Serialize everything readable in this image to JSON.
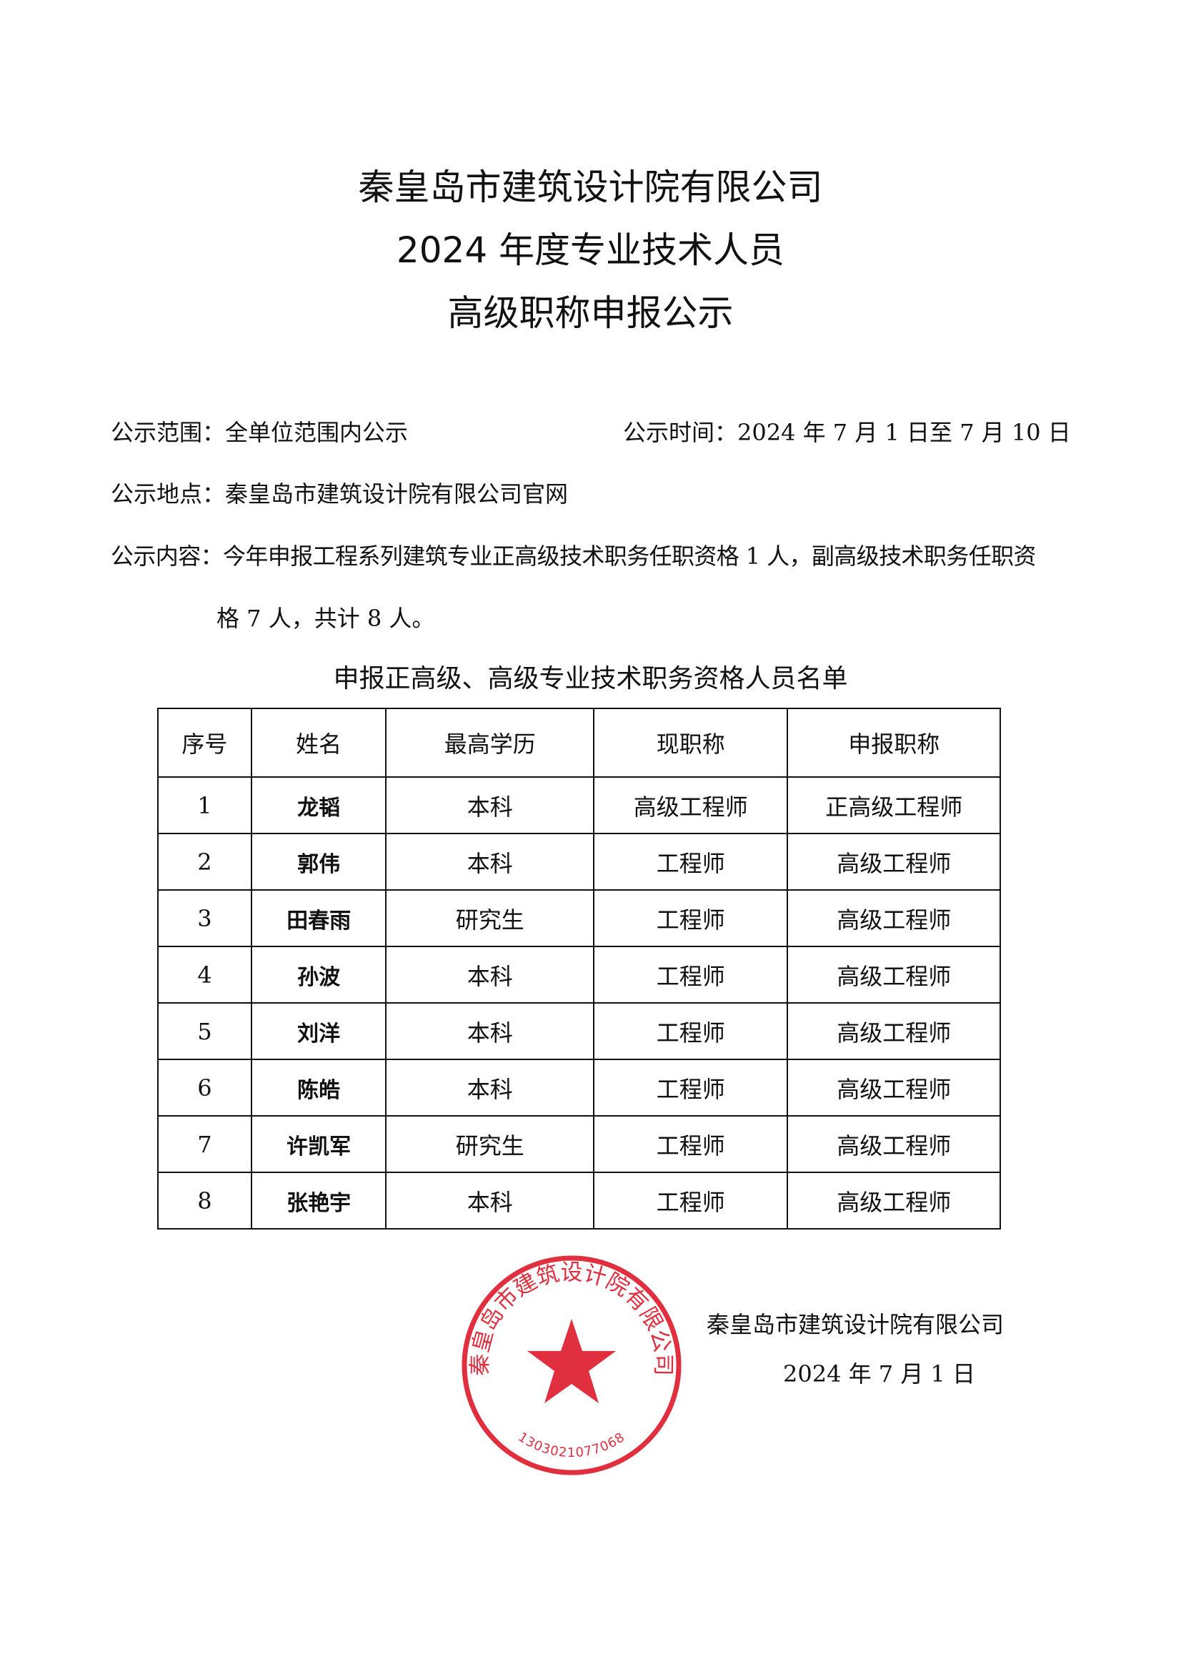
{
  "header": {
    "title_line1": "秦皇岛市建筑设计院有限公司",
    "title_line2": "2024 年度专业技术人员",
    "title_line3": "高级职称申报公示"
  },
  "info": {
    "scope": "公示范围：全单位范围内公示",
    "time": "公示时间：2024 年 7 月 1 日至 7 月 10 日",
    "place": "公示地点：秦皇岛市建筑设计院有限公司官网",
    "content_line1": "公示内容：今年申报工程系列建筑专业正高级技术职务任职资格 1 人，副高级技术职务任职资",
    "content_line2": "格 7 人，共计 8 人。"
  },
  "table": {
    "caption": "申报正高级、高级专业技术职务资格人员名单",
    "headers": [
      "序号",
      "姓名",
      "最高学历",
      "现职称",
      "申报职称"
    ],
    "rows": [
      [
        "1",
        "龙韬",
        "本科",
        "高级工程师",
        "正高级工程师"
      ],
      [
        "2",
        "郭伟",
        "本科",
        "工程师",
        "高级工程师"
      ],
      [
        "3",
        "田春雨",
        "研究生",
        "工程师",
        "高级工程师"
      ],
      [
        "4",
        "孙波",
        "本科",
        "工程师",
        "高级工程师"
      ],
      [
        "5",
        "刘洋",
        "本科",
        "工程师",
        "高级工程师"
      ],
      [
        "6",
        "陈皓",
        "本科",
        "工程师",
        "高级工程师"
      ],
      [
        "7",
        "许凯军",
        "研究生",
        "工程师",
        "高级工程师"
      ],
      [
        "8",
        "张艳宇",
        "本科",
        "工程师",
        "高级工程师"
      ]
    ]
  },
  "signature": {
    "company": "秦皇岛市建筑设计院有限公司",
    "date": "2024 年 7 月 1 日"
  },
  "stamp": {
    "text": "秦皇岛市建筑设计院有限公司",
    "code": "1303021077068",
    "color": "#e0303f"
  }
}
